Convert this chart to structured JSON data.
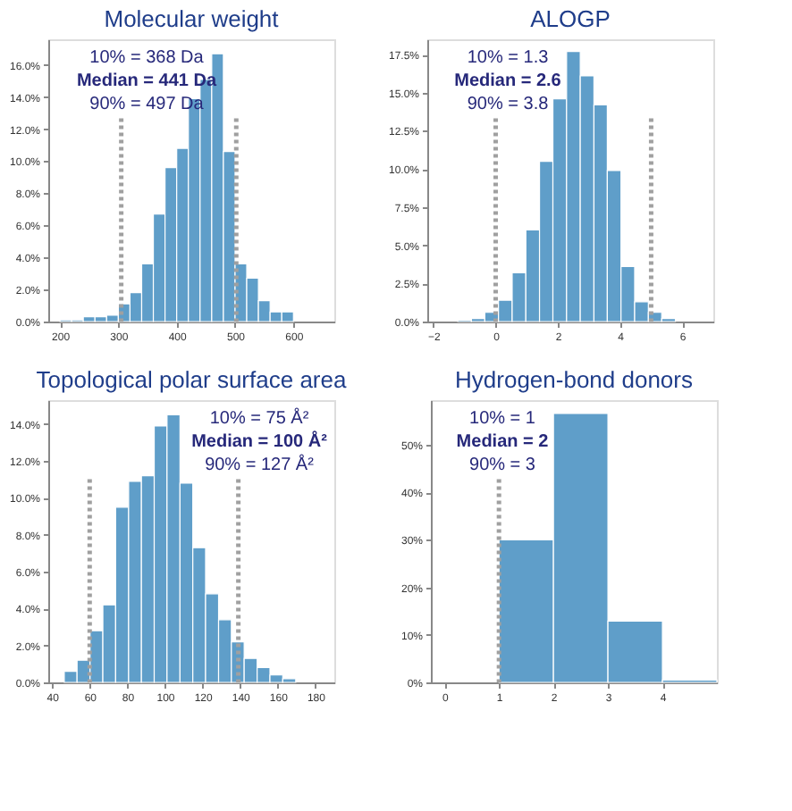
{
  "chart_data": [
    {
      "type": "histogram",
      "title": "Molecular weight",
      "color": "#5f9ec9",
      "bins": [
        200,
        220,
        240,
        260,
        280,
        300,
        320,
        340,
        360,
        380,
        400,
        420,
        440,
        460,
        480,
        500,
        520,
        540,
        560,
        580,
        600
      ],
      "values": [
        0.1,
        0.1,
        0.3,
        0.3,
        0.4,
        1.1,
        1.8,
        3.6,
        6.7,
        9.6,
        10.8,
        13.9,
        15.1,
        16.7,
        10.6,
        3.6,
        2.7,
        1.3,
        0.6,
        0.6
      ],
      "xlim": [
        180,
        670
      ],
      "xticks": [
        200,
        300,
        400,
        500,
        600
      ],
      "ylim": [
        0,
        17.6
      ],
      "yticks": [
        {
          "value": 0,
          "label": "0.0%"
        },
        {
          "value": 2,
          "label": "2.0%"
        },
        {
          "value": 4,
          "label": "4.0%"
        },
        {
          "value": 6,
          "label": "6.0%"
        },
        {
          "value": 8,
          "label": "8.0%"
        },
        {
          "value": 10,
          "label": "10.0%"
        },
        {
          "value": 12,
          "label": "12.0%"
        },
        {
          "value": 14,
          "label": "14.0%"
        },
        {
          "value": 16,
          "label": "16.0%"
        }
      ],
      "ref_lines": [
        {
          "axis": "x",
          "value": 305,
          "color": "#a0a0a0",
          "line_style": "dotted"
        },
        {
          "axis": "x",
          "value": 502,
          "color": "#a0a0a0",
          "line_style": "dotted"
        }
      ],
      "annotations": [
        "10% = 368 Da",
        "Median = 441 Da",
        "90% = 497 Da"
      ],
      "grid": false
    },
    {
      "type": "histogram",
      "title": "ALOGP",
      "color": "#5f9ec9",
      "bins": [
        -1.22,
        -0.78,
        -0.35,
        0.09,
        0.53,
        0.97,
        1.41,
        1.84,
        2.28,
        2.72,
        3.16,
        3.59,
        4.03,
        4.47,
        4.91,
        5.34,
        5.78
      ],
      "values": [
        0.1,
        0.2,
        0.6,
        1.4,
        3.2,
        6.0,
        10.5,
        14.6,
        17.7,
        16.1,
        14.2,
        9.9,
        3.6,
        1.3,
        0.6,
        0.2
      ],
      "xlim": [
        -2.2,
        7
      ],
      "xticks": [
        -2,
        0,
        2,
        4,
        6
      ],
      "ylim": [
        0,
        18.5
      ],
      "yticks": [
        {
          "value": 0,
          "label": "0.0%"
        },
        {
          "value": 2.5,
          "label": "2.5%"
        },
        {
          "value": 5,
          "label": "5.0%"
        },
        {
          "value": 7.5,
          "label": "7.5%"
        },
        {
          "value": 10,
          "label": "10.0%"
        },
        {
          "value": 12.5,
          "label": "12.5%"
        },
        {
          "value": 15,
          "label": "15.0%"
        },
        {
          "value": 17.5,
          "label": "17.5%"
        }
      ],
      "ref_lines": [
        {
          "axis": "x",
          "value": 0,
          "color": "#a0a0a0",
          "line_style": "dotted"
        },
        {
          "axis": "x",
          "value": 5,
          "color": "#a0a0a0",
          "line_style": "dotted"
        }
      ],
      "annotations": [
        "10% = 1.3",
        "Median = 2.6",
        "90% = 3.8"
      ],
      "grid": false
    },
    {
      "type": "histogram",
      "title": "Topological polar surface area",
      "color": "#5f9ec9",
      "bins": [
        46.5,
        53.3,
        60.2,
        67.0,
        73.8,
        80.7,
        87.5,
        94.3,
        101.1,
        108.0,
        114.8,
        121.6,
        128.5,
        135.3,
        142.1,
        149.0,
        155.8,
        162.6,
        169.5
      ],
      "values": [
        0.6,
        1.2,
        2.8,
        4.2,
        9.5,
        10.9,
        11.2,
        13.9,
        14.5,
        10.8,
        7.3,
        4.8,
        3.4,
        2.2,
        1.3,
        0.8,
        0.4,
        0.2
      ],
      "xlim": [
        38,
        190
      ],
      "xticks": [
        40,
        60,
        80,
        100,
        120,
        140,
        160,
        180
      ],
      "ylim": [
        0,
        15.3
      ],
      "yticks": [
        {
          "value": 0,
          "label": "0.0%"
        },
        {
          "value": 2,
          "label": "2.0%"
        },
        {
          "value": 4,
          "label": "4.0%"
        },
        {
          "value": 6,
          "label": "6.0%"
        },
        {
          "value": 8,
          "label": "8.0%"
        },
        {
          "value": 10,
          "label": "10.0%"
        },
        {
          "value": 12,
          "label": "12.0%"
        },
        {
          "value": 14,
          "label": "14.0%"
        }
      ],
      "ref_lines": [
        {
          "axis": "x",
          "value": 60,
          "color": "#a0a0a0",
          "line_style": "dotted"
        },
        {
          "axis": "x",
          "value": 139,
          "color": "#a0a0a0",
          "line_style": "dotted"
        }
      ],
      "annotations": [
        "10% = 75 Å²",
        "Median = 100 Å²",
        "90% = 127 Å²"
      ],
      "grid": false
    },
    {
      "type": "histogram",
      "title": "Hydrogen-bond donors",
      "color": "#5f9ec9",
      "bins": [
        1,
        2,
        3,
        4,
        5
      ],
      "values": [
        30.0,
        56.6,
        12.9,
        0.5
      ],
      "xlim": [
        -0.25,
        5
      ],
      "xticks": [
        0,
        1,
        2,
        3,
        4
      ],
      "ylim": [
        0,
        59.4
      ],
      "yticks": [
        {
          "value": 0,
          "label": "0%"
        },
        {
          "value": 10,
          "label": "10%"
        },
        {
          "value": 20,
          "label": "20%"
        },
        {
          "value": 30,
          "label": "30%"
        },
        {
          "value": 40,
          "label": "40%"
        },
        {
          "value": 50,
          "label": "50%"
        }
      ],
      "ref_lines": [
        {
          "axis": "x",
          "value": 1,
          "color": "#a0a0a0",
          "line_style": "dotted"
        }
      ],
      "annotations": [
        "10% = 1",
        "Median = 2",
        "90% = 3"
      ],
      "grid": false
    }
  ]
}
